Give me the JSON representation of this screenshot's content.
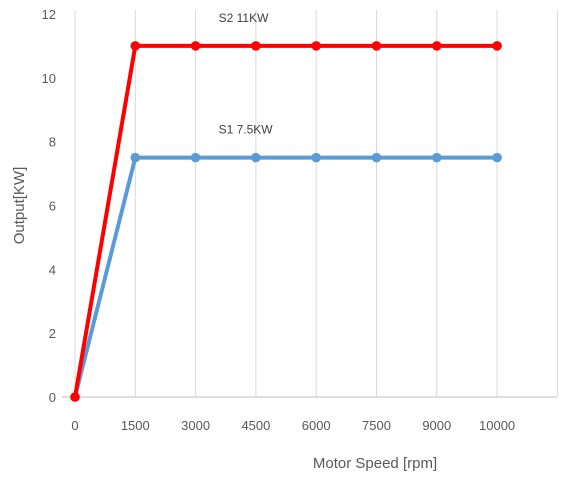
{
  "chart_data": {
    "type": "line",
    "x_tick_labels": [
      "0",
      "1500",
      "3000",
      "4500",
      "6000",
      "7500",
      "9000",
      "10000"
    ],
    "y_tick_labels": [
      "0",
      "2",
      "4",
      "6",
      "8",
      "10",
      "12"
    ],
    "y_ticks": [
      0,
      2,
      4,
      6,
      8,
      10,
      12
    ],
    "ylim": [
      0,
      12
    ],
    "xlabel": "Motor Speed [rpm]",
    "ylabel": "Output[KW]",
    "grid": "vertical",
    "series": [
      {
        "values": [
          0,
          11,
          11,
          11,
          11,
          11,
          11,
          11
        ],
        "color": "#ff0000"
      },
      {
        "values": [
          0,
          7.5,
          7.5,
          7.5,
          7.5,
          7.5,
          7.5,
          7.5
        ],
        "color": "#5b9bd5"
      }
    ],
    "annotations": [
      {
        "text": "S2  11KW",
        "at_index": 2,
        "series": 0
      },
      {
        "text": "S1 7.5KW",
        "at_index": 2,
        "series": 1
      }
    ]
  }
}
